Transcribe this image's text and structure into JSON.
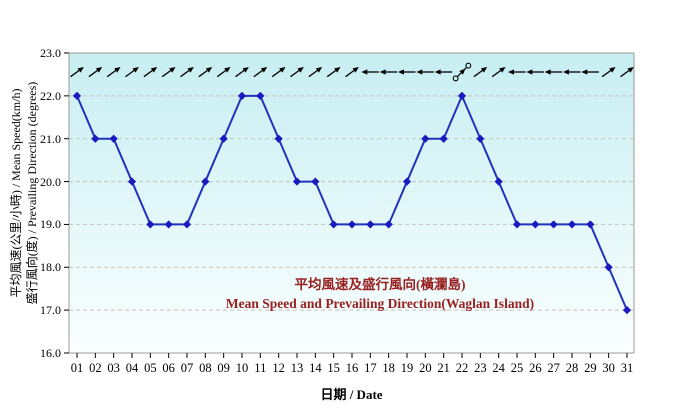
{
  "chart_data": {
    "type": "line",
    "title_zh": "平均風速及盛行風向(橫瀾島)",
    "title_en": "Mean Speed and Prevailing Direction(Waglan Island)",
    "ylabel_line1": "平均風速(公里/小時) / Mean Speed(km/h)",
    "ylabel_line2": "盛行風向(度) / Prevailing Direction (degrees)",
    "xlabel": "日期 / Date",
    "x_labels": [
      "01",
      "02",
      "03",
      "04",
      "05",
      "06",
      "07",
      "08",
      "09",
      "10",
      "11",
      "12",
      "13",
      "14",
      "15",
      "16",
      "17",
      "18",
      "19",
      "20",
      "21",
      "22",
      "23",
      "24",
      "25",
      "26",
      "27",
      "28",
      "29",
      "30",
      "31"
    ],
    "series": [
      {
        "name": "mean-speed-km/h",
        "values": [
          22,
          21,
          21,
          20,
          19,
          19,
          19,
          20,
          21,
          22,
          22,
          21,
          20,
          20,
          19,
          19,
          19,
          19,
          20,
          21,
          21,
          22,
          21,
          20,
          19,
          19,
          19,
          19,
          19,
          18,
          17
        ]
      }
    ],
    "wind_direction_arrows": [
      "ne",
      "ne",
      "ne",
      "ne",
      "ne",
      "ne",
      "ne",
      "ne",
      "ne",
      "ne",
      "ne",
      "ne",
      "ne",
      "ne",
      "ne",
      "ne",
      "w",
      "w",
      "w",
      "w",
      "w",
      "variable",
      "ne",
      "ne",
      "w",
      "w",
      "w",
      "w",
      "w",
      "ne",
      "ne"
    ],
    "ylim": [
      16,
      23
    ],
    "yticks": [
      16,
      17,
      18,
      19,
      20,
      21,
      22,
      23
    ],
    "ytick_format": "one-decimal",
    "grid": "horizontal-dashed",
    "legend": "none",
    "colors": {
      "line": "#2233bb",
      "marker": "#1a1abf",
      "title_text": "#992020",
      "plot_bg_top": "#c7eef2",
      "plot_bg_bottom": "#fbffff",
      "gridline": "#c3c3b2",
      "plot_border": "#999999",
      "axis_text": "#000000",
      "arrow": "#000000"
    }
  }
}
